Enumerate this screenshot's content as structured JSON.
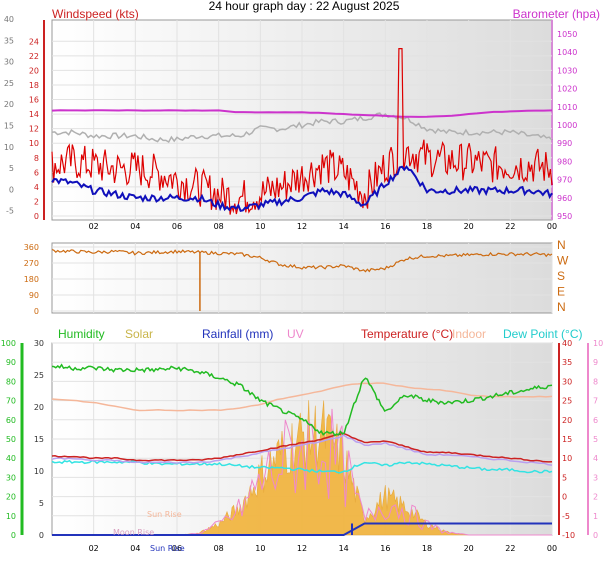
{
  "title": "24 hour graph day : 22 August 2025",
  "colors": {
    "wind": "#dd0000",
    "gust": "#ff0000",
    "avg": "#1010bb",
    "baro": "#cc33cc",
    "temp_ref": "#b0b0b0",
    "dir": "#cc6a10",
    "humidity": "#22bb22",
    "solar": "#f2b33a",
    "rain": "#2233bb",
    "uv": "#ee88cc",
    "temp": "#cc2222",
    "indoor": "#f5b79a",
    "dew": "#33e3e3",
    "feels": "#b9a0f0"
  },
  "x_ticks": [
    "02",
    "04",
    "06",
    "08",
    "10",
    "12",
    "14",
    "16",
    "18",
    "20",
    "22",
    "00"
  ],
  "panel1": {
    "left_label": "Windspeed (kts)",
    "right_label": "Barometer (hpa)",
    "outer_ticks": [
      "40",
      "35",
      "30",
      "25",
      "20",
      "15",
      "10",
      "5",
      "0",
      "-5"
    ],
    "left_ticks": [
      "24",
      "22",
      "20",
      "18",
      "16",
      "14",
      "12",
      "10",
      "8",
      "6",
      "4",
      "2",
      "0"
    ],
    "right_ticks": [
      "1050",
      "1040",
      "1030",
      "1020",
      "1010",
      "1000",
      "990",
      "980",
      "970",
      "960",
      "950"
    ]
  },
  "panel2": {
    "left_ticks": [
      "360",
      "270",
      "180",
      "90",
      "0"
    ],
    "right_labels": [
      "N",
      "W",
      "S",
      "E",
      "N"
    ]
  },
  "panel3": {
    "legend": {
      "humidity": "Humidity",
      "solar": "Solar",
      "rain": "Rainfall (mm)",
      "uv": "UV",
      "temp": "Temperature (°C)",
      "indoor": "Indoor",
      "dew": "Dew Point (°C)"
    },
    "hum_ticks": [
      "100",
      "90",
      "80",
      "70",
      "60",
      "50",
      "40",
      "30",
      "20",
      "10",
      "0"
    ],
    "solar_ticks": [
      "30",
      "25",
      "20",
      "15",
      "10",
      "5",
      "0"
    ],
    "temp_ticks": [
      "40",
      "35",
      "30",
      "25",
      "20",
      "15",
      "10",
      "5",
      "0",
      "-5",
      "-10"
    ],
    "uv_ticks": [
      "10",
      "9",
      "8",
      "7",
      "6",
      "5",
      "4",
      "3",
      "2",
      "1",
      "0"
    ],
    "annotations": {
      "sun_rise": "Sun Rise",
      "moon_rise": "Moon Rise",
      "sun_rise_axis": "Sun Rise"
    }
  },
  "chart_data": [
    {
      "type": "line",
      "title": "Windspeed (kts) / Barometer (hpa)",
      "x": [
        0,
        1,
        2,
        3,
        4,
        5,
        6,
        7,
        8,
        9,
        10,
        11,
        12,
        13,
        14,
        15,
        16,
        17,
        18,
        19,
        20,
        21,
        22,
        23,
        24
      ],
      "ylim_left": [
        0,
        25
      ],
      "ylim_right": [
        950,
        1050
      ],
      "series": [
        {
          "name": "Windspeed",
          "axis": "left",
          "values": [
            7,
            7.5,
            7,
            6.5,
            6.5,
            6,
            5,
            4,
            3,
            2.5,
            3,
            4,
            5.5,
            7,
            6,
            3,
            7,
            9,
            8,
            7.5,
            7.5,
            7,
            7,
            7,
            6.5
          ]
        },
        {
          "name": "Average",
          "axis": "left",
          "values": [
            5,
            4.5,
            3.5,
            3,
            2.5,
            2.5,
            2.5,
            2.5,
            1.5,
            1,
            1.5,
            2,
            2.5,
            3.5,
            3,
            1.5,
            4.5,
            7,
            3.5,
            3.5,
            3.5,
            3.5,
            3.5,
            3.5,
            3
          ]
        },
        {
          "name": "Barometer",
          "axis": "right",
          "values": [
            1008,
            1008,
            1008,
            1008,
            1008,
            1008,
            1008,
            1008,
            1008,
            1007,
            1007,
            1007,
            1007,
            1006.5,
            1006,
            1005.5,
            1005,
            1004.5,
            1004.5,
            1005,
            1006,
            1007,
            1007.5,
            1008,
            1008
          ]
        },
        {
          "name": "Temperature trace",
          "axis": "left",
          "values": [
            11.5,
            11.5,
            11,
            11,
            11,
            10.5,
            10.5,
            11,
            11,
            11,
            12,
            12,
            12.5,
            13,
            13,
            13.5,
            14,
            13.5,
            12,
            11.5,
            11.5,
            11.5,
            11.5,
            11,
            10.5
          ]
        }
      ],
      "peaks": [
        {
          "x": 16.7,
          "y": 23
        }
      ]
    },
    {
      "type": "scatter",
      "title": "Wind direction",
      "x": [
        0,
        1,
        2,
        3,
        4,
        5,
        6,
        7,
        8,
        9,
        10,
        11,
        12,
        13,
        14,
        15,
        16,
        17,
        18,
        19,
        20,
        21,
        22,
        23,
        24
      ],
      "ylim": [
        0,
        360
      ],
      "values": [
        340,
        335,
        330,
        335,
        325,
        330,
        335,
        330,
        325,
        320,
        300,
        260,
        245,
        245,
        255,
        225,
        240,
        295,
        310,
        310,
        315,
        320,
        320,
        320,
        315
      ],
      "drop": {
        "x": 7.1,
        "y": 0
      }
    },
    {
      "type": "line",
      "title": "Humidity / Solar / Rainfall / UV / Temperature / Indoor / Dew Point",
      "x": [
        0,
        1,
        2,
        3,
        4,
        5,
        6,
        7,
        8,
        9,
        10,
        11,
        12,
        13,
        14,
        15,
        16,
        17,
        18,
        19,
        20,
        21,
        22,
        23,
        24
      ],
      "series": [
        {
          "name": "Humidity",
          "unit": "%",
          "values": [
            88,
            87,
            87,
            86,
            86,
            86,
            87,
            85,
            82,
            78,
            70,
            65,
            60,
            53,
            53,
            83,
            64,
            73,
            70,
            69,
            70,
            72,
            74,
            76,
            78
          ]
        },
        {
          "name": "Temperature",
          "unit": "°C",
          "values": [
            10.5,
            10.5,
            10,
            10,
            9.5,
            9.5,
            9.5,
            9.5,
            10,
            11,
            12,
            13,
            14,
            15,
            16.5,
            14,
            14.5,
            13,
            11.5,
            11.5,
            11,
            10.5,
            10,
            9.5,
            9
          ]
        },
        {
          "name": "Indoor",
          "unit": "°C",
          "values": [
            25.5,
            25,
            24.5,
            23.5,
            22.5,
            22.5,
            22.5,
            22.5,
            22.5,
            23,
            24,
            25.5,
            26.5,
            27.5,
            29,
            29.5,
            29.5,
            28.5,
            28,
            27.5,
            26.5,
            26,
            26,
            26,
            26
          ]
        },
        {
          "name": "Dew Point",
          "unit": "°C",
          "values": [
            9,
            9,
            9,
            9,
            9,
            8.5,
            8.5,
            8.5,
            8.5,
            8,
            7.5,
            7.5,
            7,
            6.5,
            6.5,
            9,
            8,
            9,
            8.5,
            8,
            7.5,
            7,
            7,
            6.5,
            6.5
          ]
        },
        {
          "name": "Solar",
          "values": [
            0,
            0,
            0,
            0,
            0,
            0,
            0,
            0.3,
            2,
            5,
            11,
            15,
            18,
            19,
            14,
            3,
            7,
            5,
            2,
            0.5,
            0,
            0,
            0,
            0,
            0
          ]
        },
        {
          "name": "Rainfall (mm)",
          "values": [
            0,
            0,
            0,
            0,
            0,
            0,
            0,
            0,
            0,
            0,
            0,
            0,
            0,
            0,
            0,
            1.8,
            1.8,
            1.8,
            1.8,
            1.8,
            1.8,
            1.8,
            1.8,
            1.8,
            1.8
          ]
        }
      ]
    }
  ]
}
